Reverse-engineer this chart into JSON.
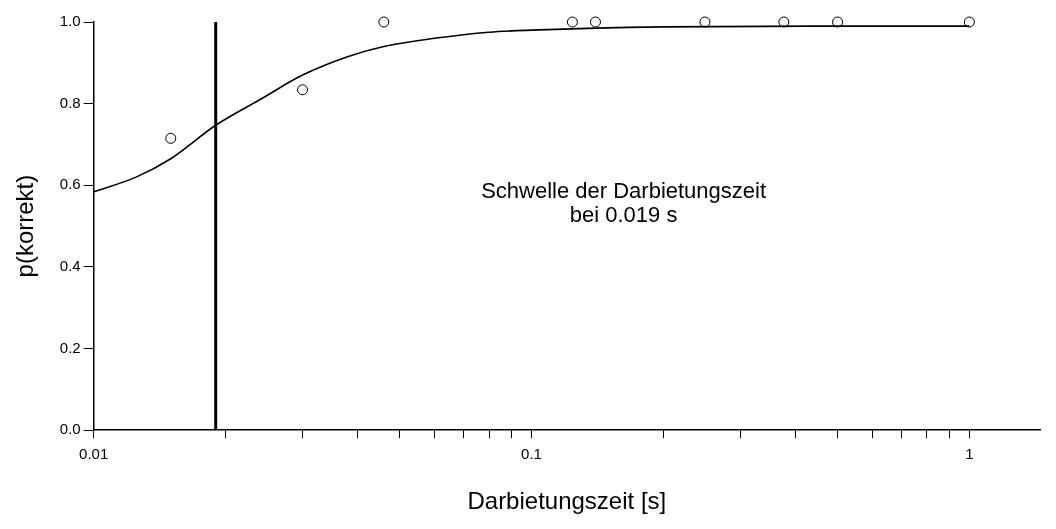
{
  "chart_data": {
    "type": "scatter",
    "xlabel": "Darbietungszeit [s]",
    "ylabel": "p(korrekt)",
    "log": "x",
    "xlim": [
      0.01,
      1.45
    ],
    "ylim": [
      0,
      1.0
    ],
    "xticks": [
      0.01,
      {
        "value": 0.02,
        "label": null
      },
      {
        "value": 0.03,
        "label": null
      },
      {
        "value": 0.04,
        "label": null
      },
      {
        "value": 0.05,
        "label": null
      },
      {
        "value": 0.06,
        "label": null
      },
      {
        "value": 0.07,
        "label": null
      },
      {
        "value": 0.08,
        "label": null
      },
      {
        "value": 0.09,
        "label": null
      },
      0.1,
      {
        "value": 0.2,
        "label": null
      },
      {
        "value": 0.3,
        "label": null
      },
      {
        "value": 0.4,
        "label": null
      },
      {
        "value": 0.5,
        "label": null
      },
      {
        "value": 0.6,
        "label": null
      },
      {
        "value": 0.7,
        "label": null
      },
      {
        "value": 0.8,
        "label": null
      },
      {
        "value": 0.9,
        "label": null
      },
      1
    ],
    "yticks": [
      {
        "value": 0,
        "label": "0.0"
      },
      0.2,
      0.4,
      0.6,
      0.8,
      {
        "value": 1.0,
        "label": "1.0"
      }
    ],
    "grid": false,
    "legend": false,
    "series": [
      {
        "type": "scatter",
        "marker": "circle",
        "color": "#000000",
        "x": [
          0.015,
          0.03,
          0.046,
          0.124,
          0.14,
          0.249,
          0.377,
          0.5,
          1
        ],
        "values": [
          0.715,
          0.834,
          1,
          1,
          1,
          1,
          1,
          1,
          1
        ]
      },
      {
        "type": "line",
        "marker": "none",
        "color": "#000000",
        "x": [
          0.01,
          0.0125,
          0.015,
          0.019,
          0.024,
          0.03,
          0.038,
          0.046,
          0.06,
          0.08,
          0.1,
          0.2,
          0.5,
          1
        ],
        "values": [
          0.584,
          0.62,
          0.665,
          0.747,
          0.81,
          0.87,
          0.915,
          0.94,
          0.96,
          0.975,
          0.98,
          0.988,
          0.99,
          0.99
        ]
      }
    ],
    "ref_lines": [
      {
        "axis": "x",
        "value": 0.019,
        "color": "#000000"
      }
    ],
    "annotations": [
      "Schwelle der Darbietungszeit\nbei 0.019 s"
    ]
  }
}
